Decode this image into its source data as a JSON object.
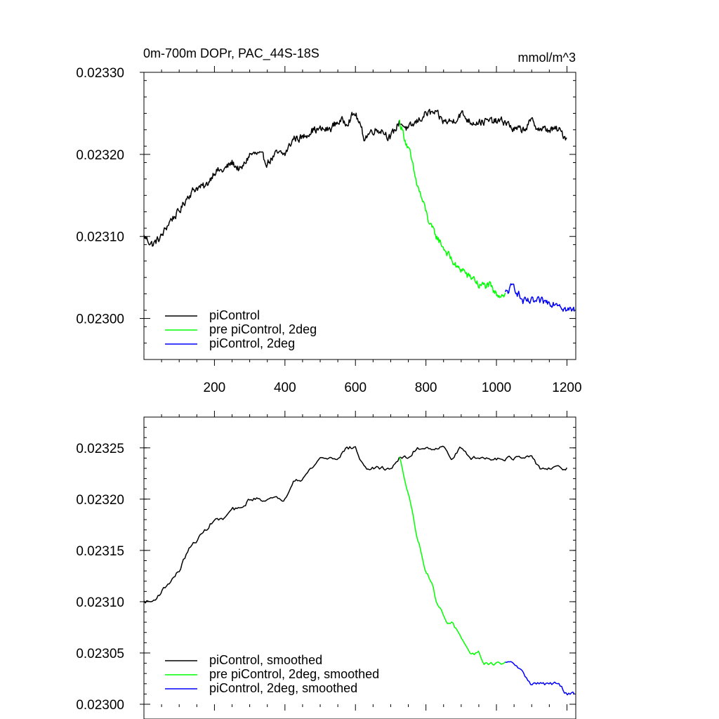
{
  "chart_data": [
    {
      "type": "line",
      "title": "0m-700m DOPr, PAC_44S-18S",
      "units": "mmol/m^3",
      "xlim": [
        0,
        1225
      ],
      "ylim": [
        0.02295,
        0.0233
      ],
      "xticks": [
        200,
        400,
        600,
        800,
        1000,
        1200
      ],
      "xtick_labels": [
        "200",
        "400",
        "600",
        "800",
        "1000",
        "1200"
      ],
      "yticks": [
        0.023,
        0.0231,
        0.0232,
        0.0233
      ],
      "ytick_labels": [
        "0.02300",
        "0.02310",
        "0.02320",
        "0.02330"
      ],
      "legend_position": "bottom-left",
      "series": [
        {
          "name": "piControl",
          "color": "#000000",
          "x": [
            0,
            25,
            50,
            75,
            100,
            125,
            150,
            175,
            200,
            225,
            250,
            275,
            300,
            325,
            350,
            375,
            400,
            425,
            450,
            475,
            500,
            525,
            550,
            575,
            600,
            625,
            650,
            675,
            700,
            725,
            750,
            775,
            800,
            825,
            850,
            875,
            900,
            925,
            950,
            975,
            1000,
            1025,
            1050,
            1075,
            1100,
            1125,
            1150,
            1175,
            1200
          ],
          "values": [
            0.0231,
            0.02309,
            0.0231,
            0.02312,
            0.02313,
            0.02315,
            0.02316,
            0.02316,
            0.02318,
            0.02318,
            0.02319,
            0.02318,
            0.0232,
            0.0232,
            0.02319,
            0.0232,
            0.0232,
            0.02322,
            0.02322,
            0.02323,
            0.02323,
            0.02323,
            0.02324,
            0.02324,
            0.02325,
            0.02322,
            0.02323,
            0.02323,
            0.02322,
            0.02324,
            0.02323,
            0.02324,
            0.02325,
            0.02325,
            0.02324,
            0.02324,
            0.02325,
            0.02324,
            0.02324,
            0.02324,
            0.02324,
            0.02324,
            0.02323,
            0.02323,
            0.02324,
            0.02323,
            0.02323,
            0.02323,
            0.02322
          ]
        },
        {
          "name": "pre piControl, 2deg",
          "color": "#00ff00",
          "x": [
            725,
            740,
            755,
            770,
            785,
            800,
            815,
            830,
            845,
            860,
            875,
            890,
            905,
            920,
            935,
            950,
            965,
            980,
            995,
            1010,
            1025
          ],
          "values": [
            0.02324,
            0.02322,
            0.0232,
            0.02317,
            0.02315,
            0.02313,
            0.02311,
            0.0231,
            0.02309,
            0.02308,
            0.02307,
            0.02306,
            0.02306,
            0.02305,
            0.02305,
            0.02304,
            0.02304,
            0.02304,
            0.02303,
            0.02303,
            0.02303
          ]
        },
        {
          "name": "piControl, 2deg",
          "color": "#0000ff",
          "x": [
            1025,
            1050,
            1075,
            1100,
            1125,
            1150,
            1175,
            1200,
            1222
          ],
          "values": [
            0.02303,
            0.02304,
            0.02302,
            0.02302,
            0.02302,
            0.02302,
            0.02302,
            0.02301,
            0.02301
          ]
        }
      ]
    },
    {
      "type": "line",
      "title": "",
      "xlim": [
        0,
        1225
      ],
      "ylim": [
        0.023,
        0.02328
      ],
      "xticks": [
        200,
        400,
        600,
        800,
        1000,
        1200
      ],
      "xtick_labels": [],
      "yticks": [
        0.023,
        0.02305,
        0.0231,
        0.02315,
        0.0232,
        0.02325
      ],
      "ytick_labels": [
        "0.02300",
        "0.02305",
        "0.02310",
        "0.02315",
        "0.02320",
        "0.02325"
      ],
      "legend_position": "bottom-left",
      "series": [
        {
          "name": "piControl, smoothed",
          "color": "#000000",
          "x": [
            0,
            25,
            50,
            75,
            100,
            125,
            150,
            175,
            200,
            225,
            250,
            275,
            300,
            325,
            350,
            375,
            400,
            425,
            450,
            475,
            500,
            525,
            550,
            575,
            600,
            625,
            650,
            675,
            700,
            725,
            750,
            775,
            800,
            825,
            850,
            875,
            900,
            925,
            950,
            975,
            1000,
            1025,
            1050,
            1075,
            1100,
            1125,
            1150,
            1175,
            1200
          ],
          "values": [
            0.0231,
            0.0231,
            0.02311,
            0.02312,
            0.02313,
            0.02315,
            0.02316,
            0.02317,
            0.02318,
            0.02318,
            0.02319,
            0.02319,
            0.0232,
            0.0232,
            0.0232,
            0.0232,
            0.0232,
            0.02322,
            0.02322,
            0.02323,
            0.02324,
            0.02324,
            0.02324,
            0.02325,
            0.02325,
            0.02323,
            0.02323,
            0.02323,
            0.02323,
            0.02324,
            0.02324,
            0.02325,
            0.02325,
            0.02325,
            0.02325,
            0.02324,
            0.02325,
            0.02324,
            0.02324,
            0.02324,
            0.02324,
            0.02324,
            0.02324,
            0.02324,
            0.02324,
            0.02323,
            0.02323,
            0.02323,
            0.02323
          ]
        },
        {
          "name": "pre piControl, 2deg, smoothed",
          "color": "#00ff00",
          "x": [
            725,
            740,
            755,
            770,
            785,
            800,
            815,
            830,
            845,
            860,
            875,
            890,
            905,
            920,
            935,
            950,
            965,
            980,
            995,
            1010,
            1025
          ],
          "values": [
            0.02324,
            0.02322,
            0.0232,
            0.02317,
            0.02315,
            0.02313,
            0.02312,
            0.0231,
            0.02309,
            0.02308,
            0.02308,
            0.02307,
            0.02306,
            0.02305,
            0.02305,
            0.02305,
            0.02304,
            0.02304,
            0.02304,
            0.02304,
            0.02304
          ]
        },
        {
          "name": "piControl, 2deg, smoothed",
          "color": "#0000ff",
          "x": [
            1025,
            1050,
            1075,
            1100,
            1125,
            1150,
            1175,
            1200,
            1222
          ],
          "values": [
            0.02304,
            0.02304,
            0.02303,
            0.02302,
            0.02302,
            0.02302,
            0.02302,
            0.02301,
            0.02301
          ]
        }
      ]
    }
  ]
}
